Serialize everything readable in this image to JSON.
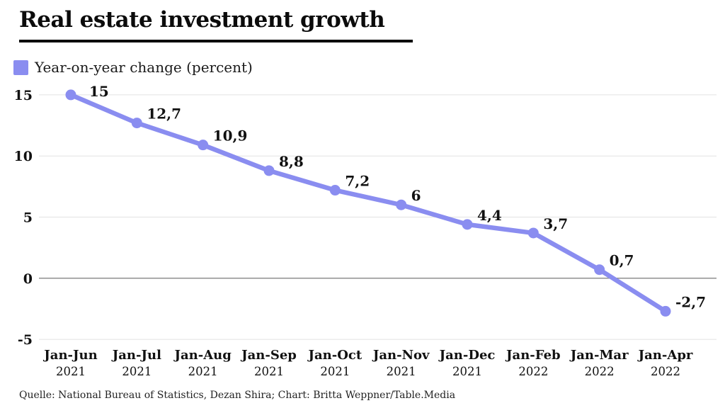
{
  "header": {
    "title": "Real estate investment growth"
  },
  "legend": {
    "label": "Year-on-year change (percent)",
    "color": "#8a8df0"
  },
  "footer": {
    "source": "Quelle: National Bureau of Statistics, Dezan Shira; Chart: Britta Weppner/Table.Media"
  },
  "chart_data": {
    "type": "line",
    "title": "Real estate investment growth",
    "series_name": "Year-on-year change (percent)",
    "categories": [
      {
        "period": "Jan-Jun",
        "year": "2021"
      },
      {
        "period": "Jan-Jul",
        "year": "2021"
      },
      {
        "period": "Jan-Aug",
        "year": "2021"
      },
      {
        "period": "Jan-Sep",
        "year": "2021"
      },
      {
        "period": "Jan-Oct",
        "year": "2021"
      },
      {
        "period": "Jan-Nov",
        "year": "2021"
      },
      {
        "period": "Jan-Dec",
        "year": "2021"
      },
      {
        "period": "Jan-Feb",
        "year": "2022"
      },
      {
        "period": "Jan-Mar",
        "year": "2022"
      },
      {
        "period": "Jan-Apr",
        "year": "2022"
      }
    ],
    "values": [
      15,
      12.7,
      10.9,
      8.8,
      7.2,
      6,
      4.4,
      3.7,
      0.7,
      -2.7
    ],
    "value_labels": [
      "15",
      "12,7",
      "10,9",
      "8,8",
      "7,2",
      "6",
      "4,4",
      "3,7",
      "0,7",
      "-2,7"
    ],
    "yticks": [
      15,
      10,
      5,
      0,
      -5
    ],
    "ytick_labels": [
      "15",
      "10",
      "5",
      "0",
      "-5"
    ],
    "ylim": [
      -5,
      15
    ],
    "grid": true,
    "zero_line": true,
    "line_color": "#8a8df0",
    "grid_color": "#e2e2e2",
    "zero_line_color": "#8f8f8f",
    "legend_position": "top-left"
  }
}
